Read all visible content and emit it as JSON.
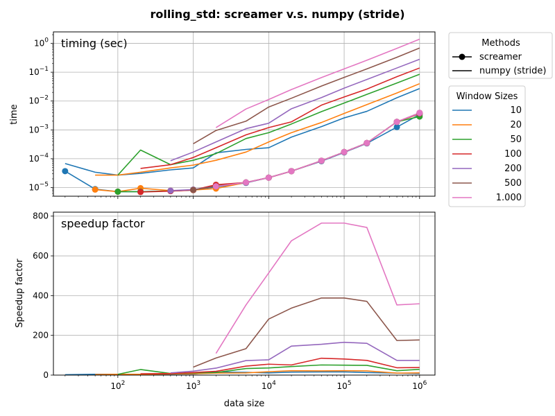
{
  "figure": {
    "title": "rolling_std:  screamer v.s. numpy (stride)"
  },
  "legend_methods": {
    "title": "Methods",
    "entries": [
      "screamer",
      "numpy (stride)"
    ]
  },
  "legend_windows": {
    "title": "Window Sizes",
    "entries": [
      "10",
      "20",
      "50",
      "100",
      "200",
      "500",
      "1.000"
    ]
  },
  "colors": {
    "10": "#1f77b4",
    "20": "#ff7f0e",
    "50": "#2ca02c",
    "100": "#d62728",
    "200": "#9467bd",
    "500": "#8c564b",
    "1000": "#e377c2",
    "grid": "#b0b0b0",
    "axes": "#000000"
  },
  "chart_data": [
    {
      "type": "line",
      "panel_label": "timing (sec)",
      "xlabel": "",
      "ylabel": "time",
      "xscale": "log",
      "yscale": "log",
      "xlim": [
        14,
        1600000
      ],
      "ylim": [
        5e-06,
        2.5
      ],
      "x_ticks": [
        {
          "v": 100,
          "base": "10",
          "exp": "2"
        },
        {
          "v": 1000,
          "base": "10",
          "exp": "3"
        },
        {
          "v": 10000,
          "base": "10",
          "exp": "4"
        },
        {
          "v": 100000,
          "base": "10",
          "exp": "5"
        },
        {
          "v": 1000000,
          "base": "10",
          "exp": "6"
        }
      ],
      "y_ticks": [
        {
          "v": 1e-05,
          "base": "10",
          "exp": "−5"
        },
        {
          "v": 0.0001,
          "base": "10",
          "exp": "−4"
        },
        {
          "v": 0.001,
          "base": "10",
          "exp": "−3"
        },
        {
          "v": 0.01,
          "base": "10",
          "exp": "−2"
        },
        {
          "v": 0.1,
          "base": "10",
          "exp": "−1"
        },
        {
          "v": 1,
          "base": "10",
          "exp": "0"
        }
      ],
      "grid": true,
      "series": [
        {
          "name": "10",
          "method": "screamer",
          "color": "#1f77b4",
          "x": [
            20,
            50,
            100,
            200,
            500,
            1000,
            2000,
            5000,
            10000,
            20000,
            50000,
            100000,
            200000,
            500000,
            1000000
          ],
          "y": [
            3.7e-05,
            8.8e-06,
            7.2e-06,
            7.2e-06,
            7.6e-06,
            8.2e-06,
            1.05e-05,
            1.45e-05,
            2.2e-05,
            3.7e-05,
            8.2e-05,
            0.000165,
            0.00034,
            0.00125,
            0.0034
          ]
        },
        {
          "name": "20",
          "method": "screamer",
          "color": "#ff7f0e",
          "x": [
            50,
            100,
            200,
            500,
            1000,
            2000,
            5000,
            10000,
            20000,
            50000,
            100000,
            200000,
            500000,
            1000000
          ],
          "y": [
            8.5e-06,
            7.2e-06,
            9.5e-06,
            7.8e-06,
            8.2e-06,
            9.2e-06,
            1.5e-05,
            2.2e-05,
            3.7e-05,
            8.5e-05,
            0.00017,
            0.00035,
            0.0019,
            0.0036
          ]
        },
        {
          "name": "50",
          "method": "screamer",
          "color": "#2ca02c",
          "x": [
            100,
            200,
            500,
            1000,
            2000,
            5000,
            10000,
            20000,
            50000,
            100000,
            200000,
            500000,
            1000000
          ],
          "y": [
            7.2e-06,
            7.2e-06,
            7.6e-06,
            8.2e-06,
            1.15e-05,
            1.5e-05,
            2.2e-05,
            3.7e-05,
            8.5e-05,
            0.00017,
            0.00035,
            0.0019,
            0.0029
          ]
        },
        {
          "name": "100",
          "method": "screamer",
          "color": "#d62728",
          "x": [
            200,
            500,
            1000,
            2000,
            5000,
            10000,
            20000,
            50000,
            100000,
            200000,
            500000,
            1000000
          ],
          "y": [
            7e-06,
            7.5e-06,
            8.2e-06,
            1.25e-05,
            1.5e-05,
            2.2e-05,
            3.7e-05,
            8.5e-05,
            0.00017,
            0.00035,
            0.0019,
            0.0037
          ]
        },
        {
          "name": "200",
          "method": "screamer",
          "color": "#9467bd",
          "x": [
            500,
            1000,
            2000,
            5000,
            10000,
            20000,
            50000,
            100000,
            200000,
            500000,
            1000000
          ],
          "y": [
            7.8e-06,
            8.5e-06,
            1.1e-05,
            1.5e-05,
            2.2e-05,
            3.7e-05,
            8.5e-05,
            0.00017,
            0.00035,
            0.0019,
            0.0038
          ]
        },
        {
          "name": "500",
          "method": "screamer",
          "color": "#8c564b",
          "x": [
            1000,
            2000,
            5000,
            10000,
            20000,
            50000,
            100000,
            200000,
            500000,
            1000000
          ],
          "y": [
            8.3e-06,
            1.1e-05,
            1.5e-05,
            2.2e-05,
            3.7e-05,
            8.5e-05,
            0.00017,
            0.00035,
            0.0019,
            0.0039
          ]
        },
        {
          "name": "1.000",
          "method": "screamer",
          "color": "#e377c2",
          "x": [
            2000,
            5000,
            10000,
            20000,
            50000,
            100000,
            200000,
            500000,
            1000000
          ],
          "y": [
            1.1e-05,
            1.5e-05,
            2.2e-05,
            3.7e-05,
            8.5e-05,
            0.00017,
            0.00035,
            0.0019,
            0.0039
          ]
        },
        {
          "name": "10",
          "method": "numpy (stride)",
          "color": "#1f77b4",
          "x": [
            20,
            50,
            100,
            200,
            500,
            1000,
            2000,
            5000,
            10000,
            20000,
            50000,
            100000,
            200000,
            500000,
            1000000
          ],
          "y": [
            6.8e-05,
            3.4e-05,
            2.7e-05,
            3.1e-05,
            4.1e-05,
            4.8e-05,
            0.00016,
            0.00021,
            0.00024,
            0.00056,
            0.0013,
            0.0026,
            0.0044,
            0.013,
            0.027
          ]
        },
        {
          "name": "20",
          "method": "numpy (stride)",
          "color": "#ff7f0e",
          "x": [
            50,
            100,
            200,
            500,
            1000,
            2000,
            5000,
            10000,
            20000,
            50000,
            100000,
            200000,
            500000,
            1000000
          ],
          "y": [
            2.7e-05,
            2.7e-05,
            3.4e-05,
            4.8e-05,
            6e-05,
            8.8e-05,
            0.00017,
            0.00038,
            0.0008,
            0.0018,
            0.0037,
            0.0075,
            0.019,
            0.04
          ]
        },
        {
          "name": "50",
          "method": "numpy (stride)",
          "color": "#2ca02c",
          "x": [
            100,
            200,
            500,
            1000,
            2000,
            5000,
            10000,
            20000,
            50000,
            100000,
            200000,
            500000,
            1000000
          ],
          "y": [
            2.7e-05,
            0.0002,
            6.2e-05,
            8.8e-05,
            0.00015,
            0.0005,
            0.0008,
            0.0016,
            0.0043,
            0.0085,
            0.017,
            0.042,
            0.085
          ]
        },
        {
          "name": "100",
          "method": "numpy (stride)",
          "color": "#d62728",
          "x": [
            200,
            500,
            1000,
            2000,
            5000,
            10000,
            20000,
            50000,
            100000,
            200000,
            500000,
            1000000
          ],
          "y": [
            4.6e-05,
            6.2e-05,
            0.00011,
            0.00024,
            0.00067,
            0.0012,
            0.0019,
            0.0072,
            0.0138,
            0.026,
            0.07,
            0.14
          ]
        },
        {
          "name": "200",
          "method": "numpy (stride)",
          "color": "#9467bd",
          "x": [
            500,
            1000,
            2000,
            5000,
            10000,
            20000,
            50000,
            100000,
            200000,
            500000,
            1000000
          ],
          "y": [
            8.5e-05,
            0.00017,
            0.00038,
            0.0011,
            0.0017,
            0.0054,
            0.0132,
            0.028,
            0.056,
            0.14,
            0.28
          ]
        },
        {
          "name": "500",
          "method": "numpy (stride)",
          "color": "#8c564b",
          "x": [
            1000,
            2000,
            5000,
            10000,
            20000,
            50000,
            100000,
            200000,
            500000,
            1000000
          ],
          "y": [
            0.00033,
            0.00095,
            0.002,
            0.0062,
            0.0125,
            0.033,
            0.066,
            0.13,
            0.33,
            0.69
          ]
        },
        {
          "name": "1.000",
          "method": "numpy (stride)",
          "color": "#e377c2",
          "x": [
            2000,
            5000,
            10000,
            20000,
            50000,
            100000,
            200000,
            500000,
            1000000
          ],
          "y": [
            0.0012,
            0.0053,
            0.0113,
            0.025,
            0.065,
            0.13,
            0.26,
            0.67,
            1.4
          ]
        }
      ]
    },
    {
      "type": "line",
      "panel_label": "speedup factor",
      "xlabel": "data size",
      "ylabel": "Speedup factor",
      "xscale": "log",
      "yscale": "linear",
      "xlim": [
        14,
        1600000
      ],
      "ylim": [
        0,
        820
      ],
      "x_ticks": [
        {
          "v": 100,
          "base": "10",
          "exp": "2"
        },
        {
          "v": 1000,
          "base": "10",
          "exp": "3"
        },
        {
          "v": 10000,
          "base": "10",
          "exp": "4"
        },
        {
          "v": 100000,
          "base": "10",
          "exp": "5"
        },
        {
          "v": 1000000,
          "base": "10",
          "exp": "6"
        }
      ],
      "y_ticks": [
        {
          "v": 0,
          "label": "0"
        },
        {
          "v": 200,
          "label": "200"
        },
        {
          "v": 400,
          "label": "400"
        },
        {
          "v": 600,
          "label": "600"
        },
        {
          "v": 800,
          "label": "800"
        }
      ],
      "grid": true,
      "series": [
        {
          "name": "10",
          "color": "#1f77b4",
          "x": [
            20,
            50,
            100,
            200,
            500,
            1000,
            2000,
            5000,
            10000,
            20000,
            50000,
            100000,
            200000,
            500000,
            1000000
          ],
          "y": [
            2,
            4,
            4,
            4,
            5,
            6,
            15,
            14,
            11,
            15,
            16,
            16,
            13,
            10,
            8
          ]
        },
        {
          "name": "20",
          "color": "#ff7f0e",
          "x": [
            50,
            100,
            200,
            500,
            1000,
            2000,
            5000,
            10000,
            20000,
            50000,
            100000,
            200000,
            500000,
            1000000
          ],
          "y": [
            3,
            4,
            4,
            6,
            7,
            10,
            11,
            17,
            22,
            21,
            22,
            21,
            10,
            11
          ]
        },
        {
          "name": "50",
          "color": "#2ca02c",
          "x": [
            100,
            200,
            500,
            1000,
            2000,
            5000,
            10000,
            20000,
            50000,
            100000,
            200000,
            500000,
            1000000
          ],
          "y": [
            4,
            28,
            8,
            11,
            13,
            33,
            36,
            43,
            51,
            50,
            49,
            22,
            29
          ]
        },
        {
          "name": "100",
          "color": "#d62728",
          "x": [
            200,
            500,
            1000,
            2000,
            5000,
            10000,
            20000,
            50000,
            100000,
            200000,
            500000,
            1000000
          ],
          "y": [
            7,
            8,
            13,
            19,
            45,
            55,
            51,
            85,
            81,
            74,
            37,
            38
          ]
        },
        {
          "name": "200",
          "color": "#9467bd",
          "x": [
            500,
            1000,
            2000,
            5000,
            10000,
            20000,
            50000,
            100000,
            200000,
            500000,
            1000000
          ],
          "y": [
            11,
            20,
            35,
            73,
            77,
            146,
            155,
            165,
            160,
            74,
            74
          ]
        },
        {
          "name": "500",
          "color": "#8c564b",
          "x": [
            1000,
            2000,
            5000,
            10000,
            20000,
            50000,
            100000,
            200000,
            500000,
            1000000
          ],
          "y": [
            40,
            86,
            133,
            282,
            337,
            388,
            388,
            371,
            174,
            177
          ]
        },
        {
          "name": "1.000",
          "color": "#e377c2",
          "x": [
            2000,
            5000,
            10000,
            20000,
            50000,
            100000,
            200000,
            500000,
            1000000
          ],
          "y": [
            109,
            353,
            514,
            676,
            765,
            765,
            743,
            353,
            359
          ]
        }
      ]
    }
  ]
}
